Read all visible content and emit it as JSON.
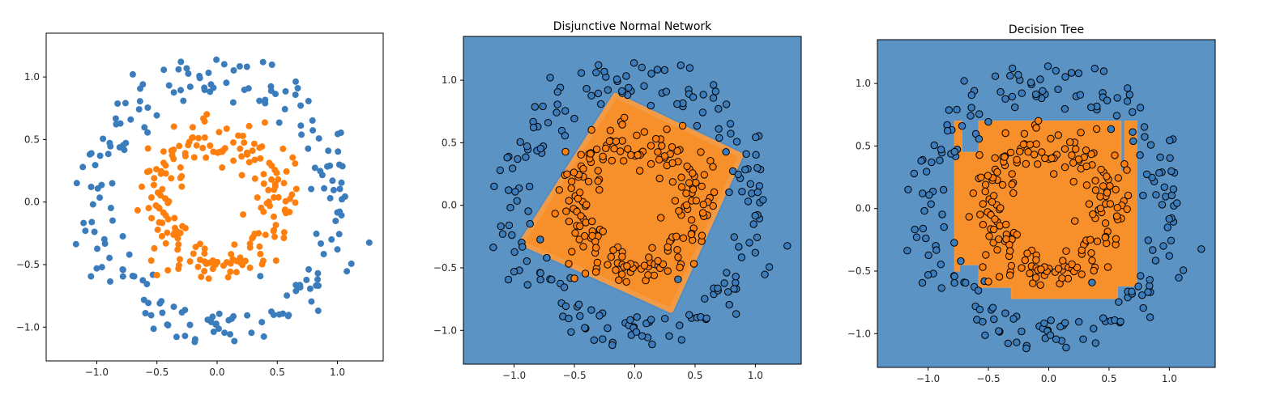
{
  "colors": {
    "class0": "#3b7dbc",
    "class1": "#ff7f0e",
    "region0": "#5b93c4",
    "region1": "#f7902a",
    "edge": "#000000"
  },
  "chart_data": [
    {
      "type": "scatter",
      "title": "",
      "xlabel": "",
      "ylabel": "",
      "xlim": [
        -1.42,
        1.38
      ],
      "ylim": [
        -1.27,
        1.35
      ],
      "xticks": [
        "−1.0",
        "−0.5",
        "0.0",
        "0.5",
        "1.0"
      ],
      "yticks": [
        "−1.0",
        "−0.5",
        "0.0",
        "0.5",
        "1.0"
      ],
      "series": [
        {
          "label": "0",
          "description": "outer ring, approx. 200 points, radius ~0.75–1.25"
        },
        {
          "label": "1",
          "description": "inner ring, approx. 200 points, radius ~0.3–0.7"
        }
      ],
      "points_note": "noisy concentric circles dataset, class 0 outer ring, class 1 inner ring"
    },
    {
      "type": "scatter",
      "title": "Disjunctive Normal Network",
      "xlabel": "",
      "ylabel": "",
      "xlim": [
        -1.42,
        1.38
      ],
      "ylim": [
        -1.27,
        1.35
      ],
      "xticks": [
        "−1.0",
        "−0.5",
        "0.0",
        "0.5",
        "1.0"
      ],
      "yticks": [
        "−1.0",
        "−0.5",
        "0.0",
        "0.5",
        "1.0"
      ],
      "decision_region": {
        "shape": "rotated rounded square",
        "corners": [
          [
            -0.16,
            0.88
          ],
          [
            0.88,
            0.4
          ],
          [
            0.3,
            -0.84
          ],
          [
            -0.94,
            -0.3
          ]
        ],
        "inside_class": "1"
      }
    },
    {
      "type": "scatter",
      "title": "Decision Tree",
      "xlabel": "",
      "ylabel": "",
      "xlim": [
        -1.42,
        1.38
      ],
      "ylim": [
        -1.27,
        1.35
      ],
      "xticks": [
        "−1.0",
        "−0.5",
        "0.0",
        "0.5",
        "1.0"
      ],
      "yticks": [
        "−1.0",
        "−0.5",
        "0.0",
        "0.5",
        "1.0"
      ],
      "decision_region": {
        "shape": "axis-aligned staircase rectangle",
        "polygon": [
          [
            -0.78,
            0.7
          ],
          [
            -0.72,
            0.7
          ],
          [
            -0.72,
            0.45
          ],
          [
            -0.58,
            0.45
          ],
          [
            -0.58,
            0.7
          ],
          [
            0.6,
            0.7
          ],
          [
            0.6,
            0.3
          ],
          [
            0.63,
            0.3
          ],
          [
            0.63,
            0.7
          ],
          [
            0.73,
            0.7
          ],
          [
            0.73,
            -0.27
          ],
          [
            0.73,
            -0.62
          ],
          [
            0.57,
            -0.62
          ],
          [
            0.57,
            -0.72
          ],
          [
            -0.31,
            -0.72
          ],
          [
            -0.31,
            -0.63
          ],
          [
            -0.58,
            -0.63
          ],
          [
            -0.58,
            -0.45
          ],
          [
            -0.74,
            -0.45
          ],
          [
            -0.74,
            -0.5
          ],
          [
            -0.78,
            -0.5
          ]
        ],
        "inside_class": "1"
      }
    }
  ]
}
